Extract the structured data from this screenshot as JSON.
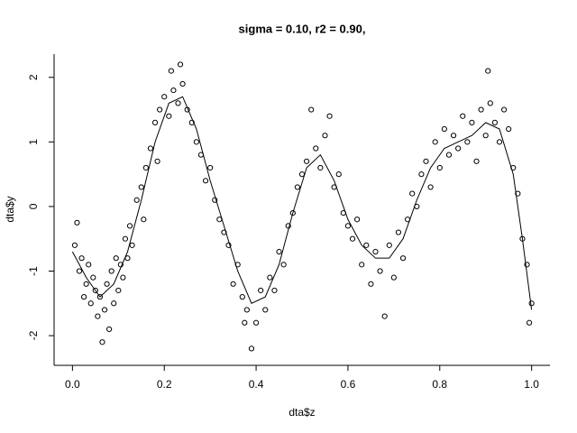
{
  "chart_data": {
    "type": "scatter",
    "title": "sigma = 0.10, r2 = 0.90,",
    "x_label": "dta$z",
    "y_label": "dta$y",
    "xlim": [
      -0.04,
      1.04
    ],
    "ylim": [
      -2.46,
      2.36
    ],
    "xticks": [
      {
        "value": 0,
        "label": "0.0"
      },
      0.2,
      0.4,
      0.6,
      0.8,
      {
        "value": 1,
        "label": "1.0"
      }
    ],
    "yticks": [
      -2,
      -1,
      0,
      1,
      2
    ],
    "color": "#000000",
    "points": {
      "x": [
        0.005,
        0.01,
        0.015,
        0.02,
        0.025,
        0.03,
        0.035,
        0.04,
        0.045,
        0.05,
        0.055,
        0.06,
        0.065,
        0.07,
        0.075,
        0.08,
        0.085,
        0.09,
        0.095,
        0.1,
        0.105,
        0.11,
        0.115,
        0.12,
        0.125,
        0.13,
        0.14,
        0.15,
        0.155,
        0.16,
        0.17,
        0.18,
        0.185,
        0.19,
        0.2,
        0.21,
        0.215,
        0.22,
        0.23,
        0.235,
        0.24,
        0.25,
        0.26,
        0.27,
        0.28,
        0.29,
        0.3,
        0.31,
        0.32,
        0.33,
        0.34,
        0.35,
        0.36,
        0.37,
        0.375,
        0.38,
        0.39,
        0.4,
        0.41,
        0.42,
        0.43,
        0.44,
        0.45,
        0.46,
        0.47,
        0.48,
        0.49,
        0.5,
        0.51,
        0.52,
        0.53,
        0.54,
        0.55,
        0.56,
        0.57,
        0.58,
        0.59,
        0.6,
        0.61,
        0.62,
        0.63,
        0.64,
        0.65,
        0.66,
        0.67,
        0.68,
        0.69,
        0.7,
        0.71,
        0.72,
        0.73,
        0.74,
        0.75,
        0.76,
        0.77,
        0.78,
        0.79,
        0.8,
        0.81,
        0.82,
        0.83,
        0.84,
        0.85,
        0.86,
        0.87,
        0.88,
        0.89,
        0.9,
        0.905,
        0.91,
        0.92,
        0.93,
        0.94,
        0.95,
        0.96,
        0.97,
        0.98,
        0.99,
        0.995,
        1.0
      ],
      "y": [
        -0.6,
        -0.25,
        -1.0,
        -0.8,
        -1.4,
        -1.2,
        -0.9,
        -1.5,
        -1.1,
        -1.3,
        -1.7,
        -1.4,
        -2.1,
        -1.6,
        -1.2,
        -1.9,
        -1.0,
        -1.5,
        -0.8,
        -1.3,
        -0.9,
        -1.1,
        -0.5,
        -0.8,
        -0.3,
        -0.6,
        0.1,
        0.3,
        -0.2,
        0.6,
        0.9,
        1.3,
        0.7,
        1.5,
        1.7,
        1.4,
        2.1,
        1.8,
        1.6,
        2.2,
        1.9,
        1.5,
        1.3,
        1.0,
        0.8,
        0.4,
        0.6,
        0.1,
        -0.2,
        -0.4,
        -0.6,
        -1.2,
        -0.9,
        -1.4,
        -1.8,
        -1.6,
        -2.2,
        -1.8,
        -1.3,
        -1.6,
        -1.1,
        -1.3,
        -0.7,
        -0.9,
        -0.3,
        -0.1,
        0.3,
        0.5,
        0.7,
        1.5,
        0.9,
        0.6,
        1.1,
        1.4,
        0.3,
        0.5,
        -0.1,
        -0.3,
        -0.5,
        -0.2,
        -0.9,
        -0.6,
        -1.2,
        -0.7,
        -1.0,
        -1.7,
        -0.6,
        -1.1,
        -0.4,
        -0.8,
        -0.2,
        0.2,
        0.0,
        0.5,
        0.7,
        0.3,
        1.0,
        0.6,
        1.2,
        0.8,
        1.1,
        0.9,
        1.4,
        1.0,
        1.3,
        0.7,
        1.5,
        1.1,
        2.1,
        1.6,
        1.3,
        1.0,
        1.5,
        1.2,
        0.6,
        0.2,
        -0.5,
        -0.9,
        -1.8,
        -1.5
      ]
    },
    "line": {
      "x": [
        0,
        0.03,
        0.06,
        0.09,
        0.12,
        0.15,
        0.18,
        0.21,
        0.24,
        0.27,
        0.3,
        0.33,
        0.36,
        0.39,
        0.42,
        0.45,
        0.48,
        0.51,
        0.54,
        0.57,
        0.6,
        0.63,
        0.66,
        0.69,
        0.72,
        0.75,
        0.78,
        0.81,
        0.84,
        0.87,
        0.9,
        0.93,
        0.96,
        0.98,
        1.0
      ],
      "y": [
        -0.7,
        -1.1,
        -1.4,
        -1.2,
        -0.7,
        0.1,
        1.0,
        1.6,
        1.7,
        1.2,
        0.4,
        -0.3,
        -1.0,
        -1.5,
        -1.4,
        -0.9,
        -0.1,
        0.6,
        0.8,
        0.4,
        -0.2,
        -0.6,
        -0.8,
        -0.8,
        -0.5,
        0.1,
        0.6,
        0.9,
        1.0,
        1.1,
        1.3,
        1.2,
        0.5,
        -0.5,
        -1.6
      ]
    }
  }
}
